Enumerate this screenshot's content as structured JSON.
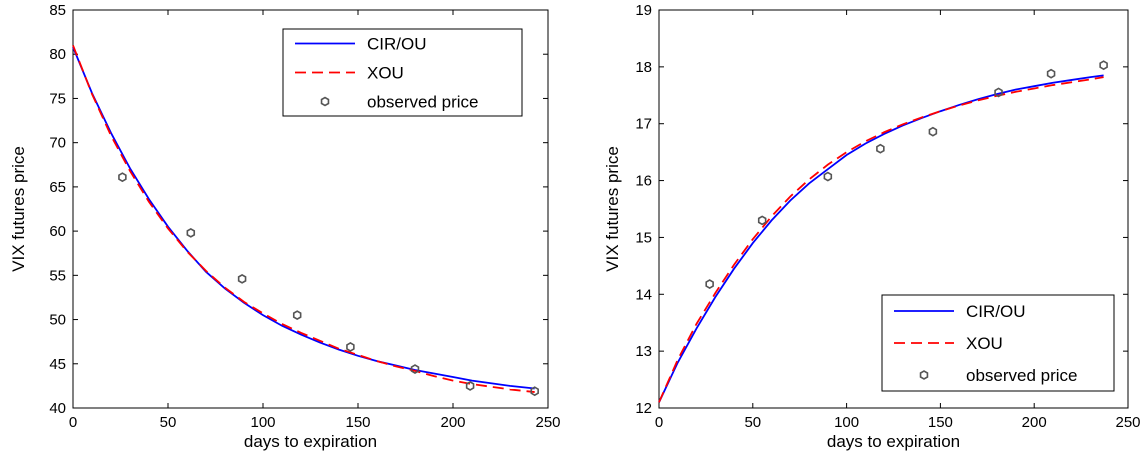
{
  "chart_data": [
    {
      "type": "line",
      "xlabel": "days to expiration",
      "ylabel": "VIX futures price",
      "xlim": [
        0,
        250
      ],
      "ylim": [
        40,
        85
      ],
      "xticks": [
        0,
        50,
        100,
        150,
        200,
        250
      ],
      "yticks": [
        40,
        45,
        50,
        55,
        60,
        65,
        70,
        75,
        80,
        85
      ],
      "legend_position": "top-right",
      "series": [
        {
          "name": "CIR/OU",
          "kind": "line",
          "color": "#0000ff",
          "dash": "solid",
          "x": [
            0,
            10,
            20,
            30,
            40,
            50,
            60,
            70,
            80,
            90,
            100,
            110,
            120,
            130,
            140,
            150,
            160,
            170,
            180,
            190,
            200,
            210,
            220,
            230,
            243
          ],
          "y": [
            80.8,
            75.6,
            71.1,
            67.1,
            63.6,
            60.5,
            57.8,
            55.4,
            53.5,
            51.9,
            50.5,
            49.3,
            48.3,
            47.4,
            46.6,
            45.9,
            45.3,
            44.8,
            44.3,
            43.9,
            43.5,
            43.1,
            42.8,
            42.5,
            42.2
          ]
        },
        {
          "name": "XOU",
          "kind": "line",
          "color": "#ff0000",
          "dash": "dashed",
          "x": [
            0,
            10,
            20,
            30,
            40,
            50,
            60,
            70,
            80,
            90,
            100,
            110,
            120,
            130,
            140,
            150,
            160,
            170,
            180,
            190,
            200,
            210,
            220,
            230,
            243
          ],
          "y": [
            81.0,
            75.5,
            70.8,
            66.8,
            63.3,
            60.3,
            57.7,
            55.5,
            53.6,
            52.0,
            50.7,
            49.5,
            48.5,
            47.6,
            46.7,
            46.0,
            45.3,
            44.7,
            44.2,
            43.6,
            43.1,
            42.7,
            42.4,
            42.1,
            41.8
          ]
        },
        {
          "name": "observed price",
          "kind": "marker",
          "color": "#555555",
          "marker": "hexagon",
          "x": [
            26,
            62,
            89,
            118,
            146,
            180,
            209,
            243
          ],
          "y": [
            66.1,
            59.8,
            54.6,
            50.5,
            46.9,
            44.4,
            42.5,
            41.9
          ]
        }
      ]
    },
    {
      "type": "line",
      "xlabel": "days to expiration",
      "ylabel": "VIX futures price",
      "xlim": [
        0,
        250
      ],
      "ylim": [
        12,
        19
      ],
      "xticks": [
        0,
        50,
        100,
        150,
        200,
        250
      ],
      "yticks": [
        12,
        13,
        14,
        15,
        16,
        17,
        18,
        19
      ],
      "legend_position": "bottom-right",
      "series": [
        {
          "name": "CIR/OU",
          "kind": "line",
          "color": "#0000ff",
          "dash": "solid",
          "x": [
            0,
            10,
            20,
            30,
            40,
            50,
            60,
            70,
            80,
            90,
            100,
            110,
            120,
            130,
            140,
            150,
            160,
            170,
            180,
            190,
            200,
            210,
            220,
            230,
            237
          ],
          "y": [
            12.1,
            12.8,
            13.4,
            13.95,
            14.45,
            14.9,
            15.3,
            15.65,
            15.95,
            16.2,
            16.45,
            16.65,
            16.82,
            16.97,
            17.1,
            17.22,
            17.33,
            17.43,
            17.52,
            17.6,
            17.66,
            17.72,
            17.77,
            17.82,
            17.85
          ]
        },
        {
          "name": "XOU",
          "kind": "line",
          "color": "#ff0000",
          "dash": "dashed",
          "x": [
            0,
            10,
            20,
            30,
            40,
            50,
            60,
            70,
            80,
            90,
            100,
            110,
            120,
            130,
            140,
            150,
            160,
            170,
            180,
            190,
            200,
            210,
            220,
            230,
            237
          ],
          "y": [
            12.1,
            12.85,
            13.48,
            14.02,
            14.52,
            14.97,
            15.37,
            15.72,
            16.02,
            16.28,
            16.5,
            16.69,
            16.85,
            16.99,
            17.11,
            17.22,
            17.32,
            17.41,
            17.49,
            17.56,
            17.62,
            17.68,
            17.73,
            17.78,
            17.82
          ]
        },
        {
          "name": "observed price",
          "kind": "marker",
          "color": "#555555",
          "marker": "hexagon",
          "x": [
            27,
            55,
            90,
            118,
            146,
            181,
            209,
            237
          ],
          "y": [
            14.18,
            15.3,
            16.07,
            16.56,
            16.86,
            17.55,
            17.88,
            18.03
          ]
        }
      ]
    }
  ]
}
